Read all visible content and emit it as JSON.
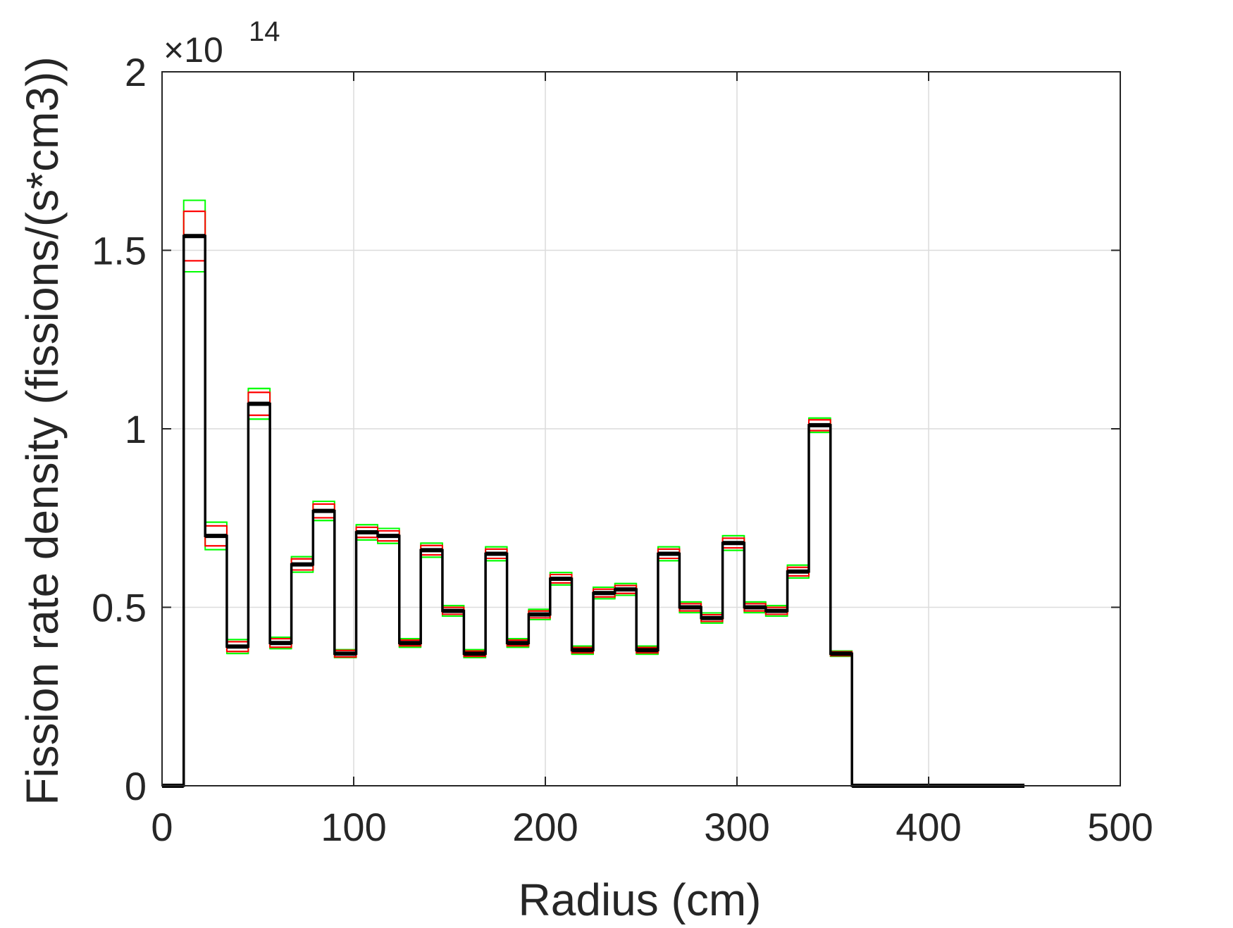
{
  "chart_data": {
    "type": "line",
    "title": "",
    "xlabel": "Radius (cm)",
    "ylabel": "Fission rate density (fissions/(s*cm3))",
    "exponent_label": {
      "base": "×10",
      "power": "14"
    },
    "xlim": [
      0,
      500
    ],
    "ylim": [
      0,
      2
    ],
    "xticks": [
      0,
      100,
      200,
      300,
      400,
      500
    ],
    "xtick_labels": [
      "0",
      "100",
      "200",
      "300",
      "400",
      "500"
    ],
    "yticks": [
      0,
      0.5,
      1,
      1.5,
      2
    ],
    "ytick_labels": [
      "0",
      "0.5",
      "1",
      "1.5",
      "2"
    ],
    "grid": true,
    "legend": "none",
    "colors": {
      "mean": "#000000",
      "error_band_1": "#ff0000",
      "error_band_2": "#00ff00",
      "axes": "#262626",
      "grid": "#dcdcdc"
    },
    "series": [
      {
        "style": "stairs",
        "color": "#000000",
        "bin_edges": [
          0,
          11.3,
          22.5,
          33.8,
          45,
          56.3,
          67.5,
          78.8,
          90,
          101.3,
          112.5,
          123.8,
          135,
          146.3,
          157.5,
          168.8,
          180,
          191.3,
          202.5,
          213.8,
          225,
          236.3,
          247.5,
          258.8,
          270,
          281.3,
          292.5,
          303.8,
          315,
          326.3,
          337.5,
          348.8,
          360,
          450
        ],
        "values": [
          0,
          1.54,
          0.7,
          0.39,
          1.07,
          0.4,
          0.62,
          0.77,
          0.37,
          0.71,
          0.7,
          0.4,
          0.66,
          0.49,
          0.37,
          0.65,
          0.4,
          0.48,
          0.58,
          0.38,
          0.54,
          0.55,
          0.38,
          0.65,
          0.5,
          0.47,
          0.68,
          0.5,
          0.49,
          0.6,
          1.01,
          0.37,
          0
        ]
      }
    ],
    "error_bands": [
      {
        "color": "#ff0000",
        "relative_halfwidth": [
          0,
          0.045,
          0.04,
          0.035,
          0.03,
          0.03,
          0.025,
          0.025,
          0.025,
          0.02,
          0.02,
          0.02,
          0.02,
          0.02,
          0.02,
          0.02,
          0.02,
          0.02,
          0.02,
          0.02,
          0.02,
          0.02,
          0.02,
          0.02,
          0.02,
          0.02,
          0.02,
          0.02,
          0.02,
          0.02,
          0.015,
          0.015,
          0
        ]
      },
      {
        "color": "#00ff00",
        "relative_halfwidth": [
          0,
          0.065,
          0.055,
          0.05,
          0.04,
          0.04,
          0.035,
          0.035,
          0.03,
          0.03,
          0.03,
          0.03,
          0.03,
          0.03,
          0.03,
          0.03,
          0.03,
          0.03,
          0.03,
          0.03,
          0.03,
          0.03,
          0.03,
          0.03,
          0.03,
          0.03,
          0.03,
          0.03,
          0.03,
          0.03,
          0.02,
          0.02,
          0
        ]
      }
    ]
  }
}
